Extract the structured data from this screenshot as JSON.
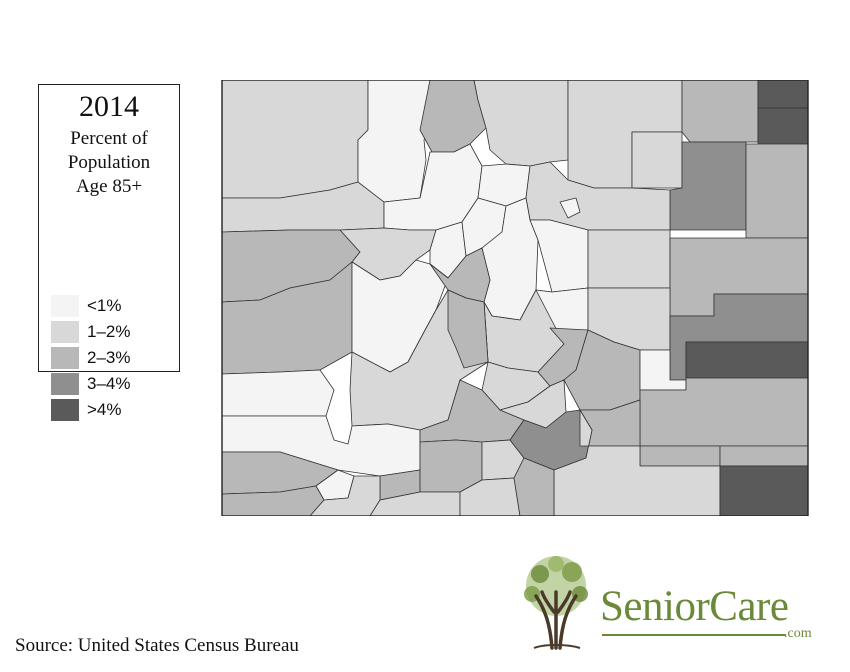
{
  "legend": {
    "year": "2014",
    "line1": "Percent of",
    "line2": "Population",
    "line3": "Age 85+",
    "items": [
      {
        "label": "<1%",
        "color": "#f4f4f4"
      },
      {
        "label": "1–2%",
        "color": "#d8d8d8"
      },
      {
        "label": "2–3%",
        "color": "#b8b8b8"
      },
      {
        "label": "3–4%",
        "color": "#8f8f8f"
      },
      {
        "label": ">4%",
        "color": "#5a5a5a"
      }
    ]
  },
  "source": "Source: United States Census Bureau",
  "brand": {
    "name": "SeniorCare",
    "domain": ".com",
    "accent": "#6a8a3a",
    "icon": "tree-logo-icon"
  },
  "map": {
    "region": "Colorado counties",
    "stroke": "#333333"
  }
}
